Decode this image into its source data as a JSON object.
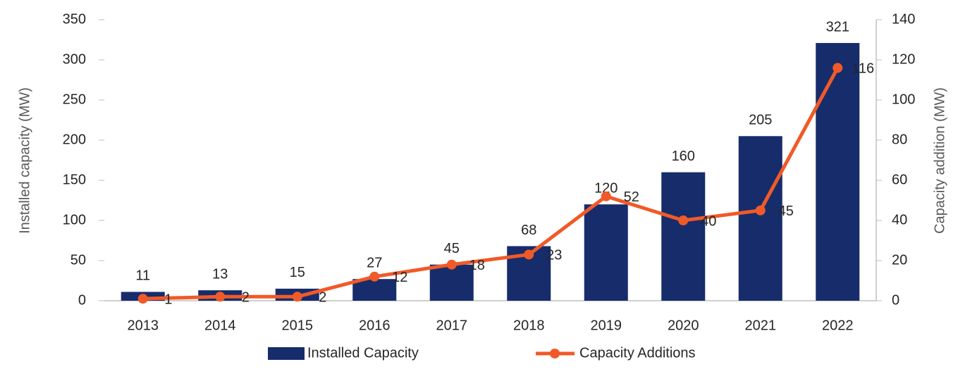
{
  "chart_data": {
    "type": "combo",
    "categories": [
      "2013",
      "2014",
      "2015",
      "2016",
      "2017",
      "2018",
      "2019",
      "2020",
      "2021",
      "2022"
    ],
    "y_label": "Installed capacity (MW)",
    "y2_label": "Capacity addition (MW)",
    "ylim": [
      0,
      350
    ],
    "yticks": [
      0,
      50,
      100,
      150,
      200,
      250,
      300,
      350
    ],
    "y2lim": [
      0,
      140
    ],
    "y2ticks": [
      0,
      20,
      40,
      60,
      80,
      100,
      120,
      140
    ],
    "legend": "bottom",
    "series": [
      {
        "name": "Installed Capacity",
        "type": "bar",
        "color": "#172c6b",
        "values": [
          11,
          13,
          15,
          27,
          45,
          68,
          120,
          160,
          205,
          321
        ]
      },
      {
        "name": "Capacity Additions",
        "type": "line",
        "axis": "y2",
        "color": "#f05a28",
        "values": [
          1,
          2,
          2,
          12,
          18,
          23,
          52,
          40,
          45,
          116
        ]
      }
    ]
  }
}
